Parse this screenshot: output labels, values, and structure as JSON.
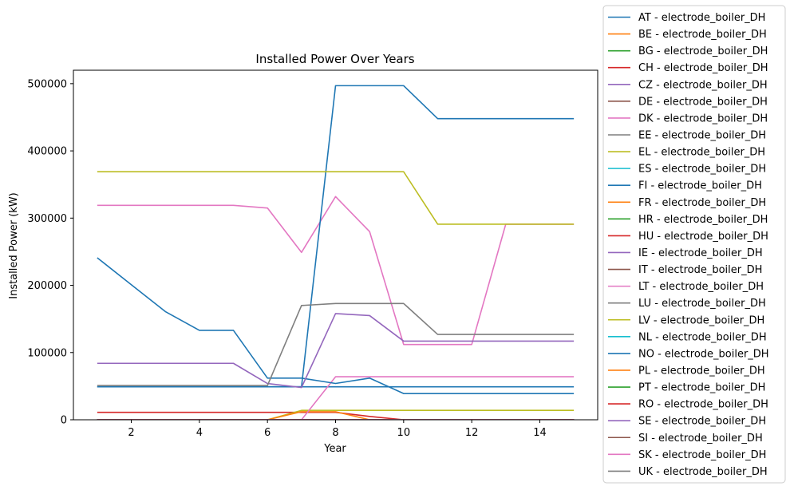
{
  "chart_data": {
    "type": "line",
    "title": "Installed Power Over Years",
    "xlabel": "Year",
    "ylabel": "Installed Power (kW)",
    "xlim": [
      0.3,
      15.7
    ],
    "ylim": [
      0,
      520000
    ],
    "xticks": [
      2,
      4,
      6,
      8,
      10,
      12,
      14
    ],
    "yticks": [
      0,
      100000,
      200000,
      300000,
      400000,
      500000
    ],
    "grid": false,
    "legend_position": "outside-right",
    "x": [
      1,
      2,
      3,
      4,
      5,
      6,
      7,
      8,
      9,
      10,
      11,
      12,
      13,
      14,
      15
    ],
    "series": [
      {
        "name": "AT - electrode_boiler_DH",
        "color": "#1f77b4",
        "values": [
          49000,
          49000,
          49000,
          49000,
          49000,
          49000,
          49000,
          49000,
          49000,
          49000,
          49000,
          49000,
          49000,
          49000,
          49000
        ]
      },
      {
        "name": "BE - electrode_boiler_DH",
        "color": "#ff7f0e",
        "values": [
          0,
          0,
          0,
          0,
          0,
          0,
          0,
          0,
          0,
          0,
          0,
          0,
          0,
          0,
          0
        ]
      },
      {
        "name": "BG - electrode_boiler_DH",
        "color": "#2ca02c",
        "values": [
          0,
          0,
          0,
          0,
          0,
          0,
          0,
          0,
          0,
          0,
          0,
          0,
          0,
          0,
          0
        ]
      },
      {
        "name": "CH - electrode_boiler_DH",
        "color": "#d62728",
        "values": [
          11000,
          11000,
          11000,
          11000,
          11000,
          11000,
          11000,
          11000,
          5000,
          0,
          0,
          0,
          0,
          0,
          0
        ]
      },
      {
        "name": "CZ - electrode_boiler_DH",
        "color": "#9467bd",
        "values": [
          0,
          0,
          0,
          0,
          0,
          0,
          0,
          0,
          0,
          0,
          0,
          0,
          0,
          0,
          0
        ]
      },
      {
        "name": "DE - electrode_boiler_DH",
        "color": "#8c564b",
        "values": [
          0,
          0,
          0,
          0,
          0,
          0,
          0,
          0,
          0,
          0,
          0,
          0,
          0,
          0,
          0
        ]
      },
      {
        "name": "DK - electrode_boiler_DH",
        "color": "#e377c2",
        "values": [
          319000,
          319000,
          319000,
          319000,
          319000,
          315000,
          249000,
          332000,
          280000,
          112000,
          112000,
          112000,
          291000,
          291000,
          291000
        ]
      },
      {
        "name": "EE - electrode_boiler_DH",
        "color": "#7f7f7f",
        "values": [
          0,
          0,
          0,
          0,
          0,
          0,
          0,
          0,
          0,
          0,
          0,
          0,
          0,
          0,
          0
        ]
      },
      {
        "name": "EL - electrode_boiler_DH",
        "color": "#bcbd22",
        "values": [
          0,
          0,
          0,
          0,
          0,
          0,
          14000,
          14000,
          14000,
          14000,
          14000,
          14000,
          14000,
          14000,
          14000
        ]
      },
      {
        "name": "ES - electrode_boiler_DH",
        "color": "#17becf",
        "values": [
          0,
          0,
          0,
          0,
          0,
          0,
          0,
          0,
          0,
          0,
          0,
          0,
          0,
          0,
          0
        ]
      },
      {
        "name": "FI - electrode_boiler_DH",
        "color": "#1f77b4",
        "values": [
          49000,
          49000,
          49000,
          49000,
          49000,
          49000,
          49000,
          497000,
          497000,
          497000,
          448000,
          448000,
          448000,
          448000,
          448000
        ]
      },
      {
        "name": "FR - electrode_boiler_DH",
        "color": "#ff7f0e",
        "values": [
          0,
          0,
          0,
          0,
          0,
          0,
          12000,
          12000,
          0,
          0,
          0,
          0,
          0,
          0,
          0
        ]
      },
      {
        "name": "HR - electrode_boiler_DH",
        "color": "#2ca02c",
        "values": [
          0,
          0,
          0,
          0,
          0,
          0,
          0,
          0,
          0,
          0,
          0,
          0,
          0,
          0,
          0
        ]
      },
      {
        "name": "HU - electrode_boiler_DH",
        "color": "#d62728",
        "values": [
          0,
          0,
          0,
          0,
          0,
          0,
          0,
          0,
          0,
          0,
          0,
          0,
          0,
          0,
          0
        ]
      },
      {
        "name": "IE - electrode_boiler_DH",
        "color": "#9467bd",
        "values": [
          0,
          0,
          0,
          0,
          0,
          0,
          0,
          0,
          0,
          0,
          0,
          0,
          0,
          0,
          0
        ]
      },
      {
        "name": "IT - electrode_boiler_DH",
        "color": "#8c564b",
        "values": [
          0,
          0,
          0,
          0,
          0,
          0,
          0,
          0,
          0,
          0,
          0,
          0,
          0,
          0,
          0
        ]
      },
      {
        "name": "LT - electrode_boiler_DH",
        "color": "#e377c2",
        "values": [
          0,
          0,
          0,
          0,
          0,
          0,
          0,
          64000,
          64000,
          64000,
          64000,
          64000,
          64000,
          64000,
          64000
        ]
      },
      {
        "name": "LU - electrode_boiler_DH",
        "color": "#7f7f7f",
        "values": [
          0,
          0,
          0,
          0,
          0,
          0,
          0,
          0,
          0,
          0,
          0,
          0,
          0,
          0,
          0
        ]
      },
      {
        "name": "LV - electrode_boiler_DH",
        "color": "#bcbd22",
        "values": [
          369000,
          369000,
          369000,
          369000,
          369000,
          369000,
          369000,
          369000,
          369000,
          369000,
          291000,
          291000,
          291000,
          291000,
          291000
        ]
      },
      {
        "name": "NL - electrode_boiler_DH",
        "color": "#17becf",
        "values": [
          0,
          0,
          0,
          0,
          0,
          0,
          0,
          0,
          0,
          0,
          0,
          0,
          0,
          0,
          0
        ]
      },
      {
        "name": "NO - electrode_boiler_DH",
        "color": "#1f77b4",
        "values": [
          241000,
          201000,
          161000,
          133000,
          133000,
          62000,
          62000,
          54000,
          62000,
          39000,
          39000,
          39000,
          39000,
          39000,
          39000
        ]
      },
      {
        "name": "PL - electrode_boiler_DH",
        "color": "#ff7f0e",
        "values": [
          0,
          0,
          0,
          0,
          0,
          0,
          0,
          0,
          0,
          0,
          0,
          0,
          0,
          0,
          0
        ]
      },
      {
        "name": "PT - electrode_boiler_DH",
        "color": "#2ca02c",
        "values": [
          0,
          0,
          0,
          0,
          0,
          0,
          0,
          0,
          0,
          0,
          0,
          0,
          0,
          0,
          0
        ]
      },
      {
        "name": "RO - electrode_boiler_DH",
        "color": "#d62728",
        "values": [
          0,
          0,
          0,
          0,
          0,
          0,
          0,
          0,
          0,
          0,
          0,
          0,
          0,
          0,
          0
        ]
      },
      {
        "name": "SE - electrode_boiler_DH",
        "color": "#9467bd",
        "values": [
          84000,
          84000,
          84000,
          84000,
          84000,
          54000,
          48000,
          158000,
          155000,
          117000,
          117000,
          117000,
          117000,
          117000,
          117000
        ]
      },
      {
        "name": "SI - electrode_boiler_DH",
        "color": "#8c564b",
        "values": [
          0,
          0,
          0,
          0,
          0,
          0,
          0,
          0,
          0,
          0,
          0,
          0,
          0,
          0,
          0
        ]
      },
      {
        "name": "SK - electrode_boiler_DH",
        "color": "#e377c2",
        "values": [
          0,
          0,
          0,
          0,
          0,
          0,
          0,
          0,
          0,
          0,
          0,
          0,
          0,
          0,
          0
        ]
      },
      {
        "name": "UK - electrode_boiler_DH",
        "color": "#7f7f7f",
        "values": [
          51000,
          51000,
          51000,
          51000,
          51000,
          51000,
          170000,
          173000,
          173000,
          173000,
          127000,
          127000,
          127000,
          127000,
          127000
        ]
      }
    ]
  }
}
